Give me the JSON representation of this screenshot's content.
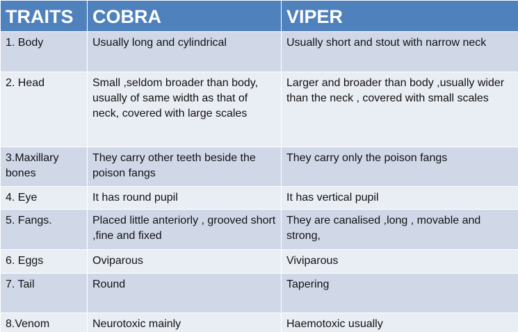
{
  "table": {
    "headers": [
      "TRAITS",
      "COBRA",
      "VIPER"
    ],
    "rows": [
      {
        "trait": "1. Body",
        "cobra": "Usually long and cylindrical",
        "viper": "Usually short and stout with narrow neck"
      },
      {
        "trait": "2. Head",
        "cobra": "Small ,seldom broader than body, usually of same width as that of neck, covered with large scales",
        "viper": "Larger and broader than body ,usually wider than the neck , covered with small scales"
      },
      {
        "trait": "3.Maxillary bones",
        "cobra": "They carry other teeth beside the poison fangs",
        "viper": "They carry only the poison fangs"
      },
      {
        "trait": "4. Eye",
        "cobra": "It has round pupil",
        "viper": "It has vertical pupil"
      },
      {
        "trait": "5. Fangs.",
        "cobra": "Placed little  anteriorly , grooved short ,fine and fixed",
        "viper": "They are canalised ,long , movable and strong,"
      },
      {
        "trait": "6. Eggs",
        "cobra": "Oviparous",
        "viper": "Viviparous"
      },
      {
        "trait": "7. Tail",
        "cobra": "Round",
        "viper": "Tapering"
      },
      {
        "trait": "8.Venom",
        "cobra": "Neurotoxic mainly",
        "viper": "Haemotoxic usually"
      }
    ]
  }
}
